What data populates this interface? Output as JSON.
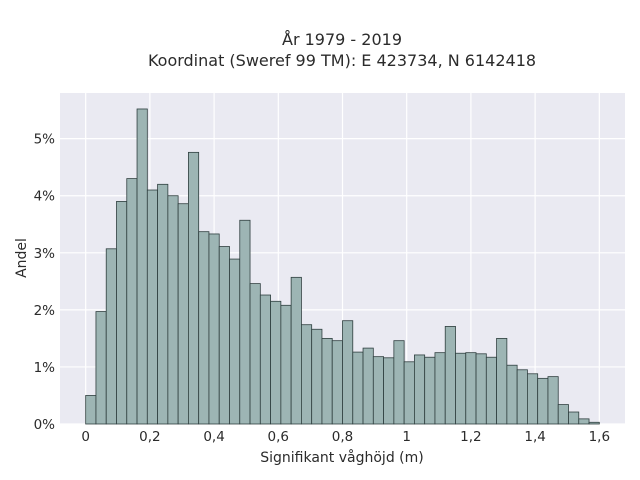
{
  "chart_data": {
    "type": "histogram",
    "title_line1": "År 1979 - 2019",
    "title_line2": "Koordinat (Sweref 99 TM): E 423734, N 6142418",
    "xlabel": "Signifikant våghöjd (m)",
    "ylabel": "Andel",
    "xlim": [
      -0.08,
      1.68
    ],
    "ylim": [
      0,
      0.058
    ],
    "bin_start": 0.0,
    "bin_width": 0.032,
    "x_ticks": [
      0,
      0.2,
      0.4,
      0.6,
      0.8,
      1.0,
      1.2,
      1.4,
      1.6
    ],
    "x_tick_labels": [
      "0",
      "0,2",
      "0,4",
      "0,6",
      "0,8",
      "1",
      "1,2",
      "1,4",
      "1,6"
    ],
    "y_ticks": [
      0,
      0.01,
      0.02,
      0.03,
      0.04,
      0.05
    ],
    "y_tick_labels": [
      "0%",
      "1%",
      "2%",
      "3%",
      "4%",
      "5%"
    ],
    "values": [
      0.005,
      0.0197,
      0.0307,
      0.039,
      0.043,
      0.0552,
      0.041,
      0.042,
      0.04,
      0.0386,
      0.0476,
      0.0337,
      0.0333,
      0.0311,
      0.0289,
      0.0357,
      0.0246,
      0.0226,
      0.0215,
      0.0208,
      0.0257,
      0.0174,
      0.0166,
      0.015,
      0.0146,
      0.0181,
      0.0126,
      0.0133,
      0.0118,
      0.0116,
      0.0146,
      0.0109,
      0.0121,
      0.0117,
      0.0125,
      0.0171,
      0.0124,
      0.0125,
      0.0123,
      0.0117,
      0.015,
      0.0103,
      0.0095,
      0.0088,
      0.008,
      0.0083,
      0.0034,
      0.0021,
      0.0009,
      0.0003
    ],
    "grid": true,
    "legend": "none",
    "colors": {
      "bar_fill": "#9db5b4",
      "bar_edge": "#2f3f3f",
      "plot_bg": "#eaeaf2",
      "grid": "#ffffff"
    }
  }
}
